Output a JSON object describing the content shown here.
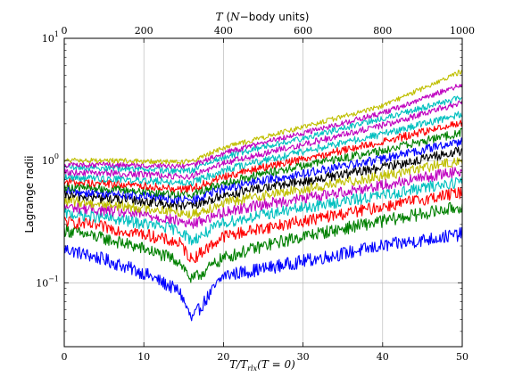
{
  "chart_data": {
    "type": "line",
    "title": "",
    "xlabel": "T/T_rlx(T = 0)",
    "xlabel_parts": {
      "main": "T/T",
      "sub": "rlx",
      "rest": "(T = 0)"
    },
    "ylabel": "Lagrange radii",
    "top_xlabel": "T (N−body units)",
    "top_xlabel_parts": {
      "var": "T",
      "rest1": " (",
      "n": "N",
      "rest2": "−body units)"
    },
    "xlim": [
      0,
      50
    ],
    "top_xlim": [
      0,
      1000
    ],
    "yscale": "log",
    "ylim": [
      0.03,
      10
    ],
    "xticks": [
      "0",
      "10",
      "20",
      "30",
      "40",
      "50"
    ],
    "top_xticks": [
      "0",
      "200",
      "400",
      "600",
      "800",
      "1000"
    ],
    "yticks": [
      {
        "value": 0.1,
        "base": "10",
        "exp": "−1"
      },
      {
        "value": 1,
        "base": "10",
        "exp": "0"
      },
      {
        "value": 10,
        "base": "10",
        "exp": "1"
      }
    ],
    "grid": true,
    "colors_cycle": [
      "#0000ff",
      "#008000",
      "#ff0000",
      "#00bfbf",
      "#bf00bf",
      "#bfbf00",
      "#000000"
    ],
    "series_x_knots": [
      0,
      5,
      10,
      14.5,
      16,
      20,
      25,
      30,
      40,
      50
    ],
    "series": [
      {
        "color": "#0000ff",
        "y": [
          0.19,
          0.155,
          0.12,
          0.085,
          0.05,
          0.115,
          0.13,
          0.15,
          0.2,
          0.25
        ]
      },
      {
        "color": "#008000",
        "y": [
          0.27,
          0.23,
          0.19,
          0.15,
          0.105,
          0.16,
          0.2,
          0.24,
          0.32,
          0.42
        ]
      },
      {
        "color": "#ff0000",
        "y": [
          0.32,
          0.285,
          0.25,
          0.21,
          0.155,
          0.24,
          0.28,
          0.32,
          0.42,
          0.55
        ]
      },
      {
        "color": "#00bfbf",
        "y": [
          0.37,
          0.34,
          0.305,
          0.27,
          0.22,
          0.31,
          0.36,
          0.41,
          0.52,
          0.68
        ]
      },
      {
        "color": "#bf00bf",
        "y": [
          0.42,
          0.39,
          0.36,
          0.32,
          0.3,
          0.38,
          0.44,
          0.49,
          0.63,
          0.83
        ]
      },
      {
        "color": "#bfbf00",
        "y": [
          0.47,
          0.44,
          0.41,
          0.38,
          0.36,
          0.45,
          0.52,
          0.58,
          0.75,
          1.0
        ]
      },
      {
        "color": "#000000",
        "y": [
          0.52,
          0.49,
          0.465,
          0.43,
          0.42,
          0.52,
          0.6,
          0.67,
          0.88,
          1.2
        ]
      },
      {
        "color": "#0000ff",
        "y": [
          0.56,
          0.54,
          0.51,
          0.48,
          0.47,
          0.59,
          0.69,
          0.78,
          1.03,
          1.45
        ]
      },
      {
        "color": "#008000",
        "y": [
          0.61,
          0.59,
          0.56,
          0.53,
          0.53,
          0.66,
          0.78,
          0.91,
          1.21,
          1.7
        ]
      },
      {
        "color": "#ff0000",
        "y": [
          0.67,
          0.65,
          0.62,
          0.59,
          0.59,
          0.74,
          0.88,
          1.04,
          1.42,
          2.05
        ]
      },
      {
        "color": "#00bfbf",
        "y": [
          0.73,
          0.71,
          0.69,
          0.66,
          0.66,
          0.83,
          1.0,
          1.18,
          1.65,
          2.4
        ]
      },
      {
        "color": "#bf00bf",
        "y": [
          0.8,
          0.79,
          0.77,
          0.74,
          0.74,
          0.95,
          1.14,
          1.35,
          1.95,
          3.0
        ]
      },
      {
        "color": "#00bfbf",
        "y": [
          0.88,
          0.87,
          0.85,
          0.82,
          0.83,
          1.06,
          1.29,
          1.53,
          2.2,
          3.3
        ]
      },
      {
        "color": "#bf00bf",
        "y": [
          0.92,
          0.92,
          0.91,
          0.89,
          0.9,
          1.15,
          1.4,
          1.68,
          2.45,
          4.2
        ]
      },
      {
        "color": "#bfbf00",
        "y": [
          1.0,
          1.0,
          0.99,
          0.97,
          0.99,
          1.27,
          1.55,
          1.88,
          2.8,
          5.4
        ]
      }
    ]
  }
}
